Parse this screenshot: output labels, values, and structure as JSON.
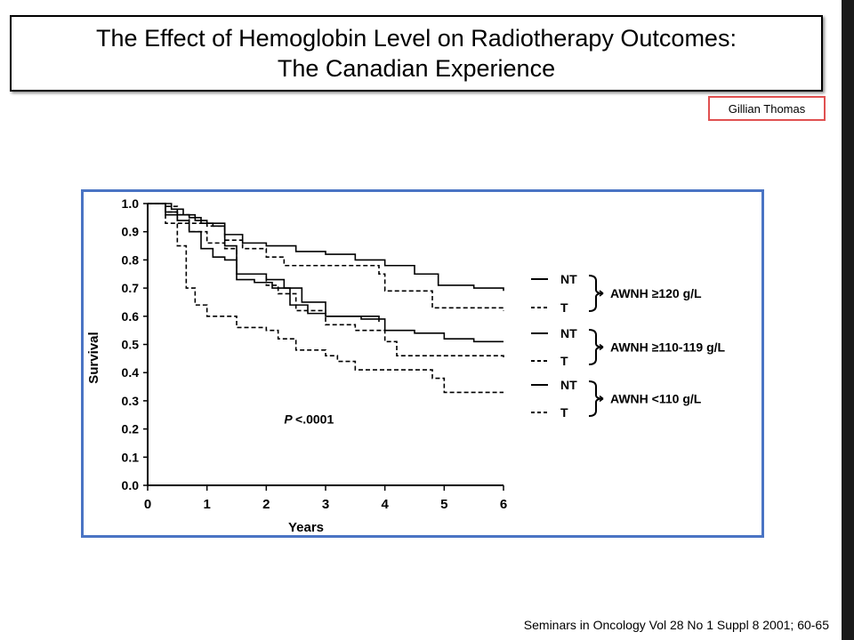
{
  "slide": {
    "title_line1": "The Effect of Hemoglobin Level on Radiotherapy Outcomes:",
    "title_line2": "The Canadian Experience",
    "author": "Gillian Thomas",
    "citation": "Seminars in Oncology Vol 28 No 1 Suppl 8 2001; 60-65"
  },
  "colors": {
    "frame_border": "#4a74c4",
    "author_border": "#e05050",
    "right_bar": "#1a1a1a"
  },
  "chart_data": {
    "type": "line",
    "title": "",
    "xlabel": "Years",
    "ylabel": "Survival",
    "xlim": [
      0,
      6
    ],
    "ylim": [
      0,
      1.0
    ],
    "x_ticks": [
      "0",
      "1",
      "2",
      "3",
      "4",
      "5",
      "6"
    ],
    "y_ticks": [
      "0.0",
      "0.1",
      "0.2",
      "0.3",
      "0.4",
      "0.5",
      "0.6",
      "0.7",
      "0.8",
      "0.9",
      "1.0"
    ],
    "annotation": "P <.0001",
    "legend_position": "right",
    "legend": [
      {
        "line": "NT",
        "style": "solid",
        "group_label": "AWNH ≥120 g/L"
      },
      {
        "line": "T",
        "style": "dashed",
        "group_label": ""
      },
      {
        "line": "NT",
        "style": "solid",
        "group_label": "AWNH ≥110-119 g/L"
      },
      {
        "line": "T",
        "style": "dashed",
        "group_label": ""
      },
      {
        "line": "NT",
        "style": "solid",
        "group_label": "AWNH <110 g/L"
      },
      {
        "line": "T",
        "style": "dashed",
        "group_label": ""
      }
    ],
    "series": [
      {
        "style": "solid",
        "x": [
          0,
          0.2,
          0.4,
          0.6,
          0.8,
          1.0,
          1.3,
          1.6,
          2.0,
          2.5,
          3.0,
          3.5,
          4.0,
          4.5,
          4.9,
          5.5,
          6.0
        ],
        "y": [
          1.0,
          1.0,
          0.98,
          0.96,
          0.94,
          0.93,
          0.89,
          0.86,
          0.85,
          0.83,
          0.82,
          0.8,
          0.78,
          0.75,
          0.71,
          0.7,
          0.69
        ]
      },
      {
        "style": "dashed",
        "x": [
          0,
          0.3,
          0.5,
          0.7,
          1.0,
          1.3,
          1.6,
          2.0,
          2.3,
          2.6,
          3.0,
          3.5,
          3.9,
          4.0,
          4.5,
          4.8,
          5.2,
          6.0
        ],
        "y": [
          1.0,
          0.99,
          0.96,
          0.93,
          0.92,
          0.87,
          0.84,
          0.81,
          0.78,
          0.78,
          0.78,
          0.78,
          0.75,
          0.69,
          0.69,
          0.63,
          0.63,
          0.62
        ]
      },
      {
        "style": "solid",
        "x": [
          0,
          0.3,
          0.5,
          0.7,
          0.9,
          1.1,
          1.3,
          1.5,
          2.0,
          2.3,
          2.6,
          3.0,
          3.6,
          4.0,
          4.5,
          5.0,
          5.5,
          6.0
        ],
        "y": [
          1.0,
          0.97,
          0.96,
          0.95,
          0.93,
          0.92,
          0.85,
          0.75,
          0.73,
          0.7,
          0.65,
          0.6,
          0.59,
          0.55,
          0.54,
          0.52,
          0.51,
          0.51
        ]
      },
      {
        "style": "dashed",
        "x": [
          0,
          0.3,
          0.5,
          0.7,
          1.0,
          1.3,
          1.5,
          2.0,
          2.2,
          2.5,
          3.0,
          3.5,
          4.0,
          4.2,
          4.8,
          5.5,
          6.0
        ],
        "y": [
          1.0,
          0.97,
          0.93,
          0.9,
          0.86,
          0.84,
          0.75,
          0.71,
          0.68,
          0.62,
          0.57,
          0.55,
          0.51,
          0.46,
          0.46,
          0.46,
          0.45
        ]
      },
      {
        "style": "solid",
        "x": [
          0,
          0.3,
          0.5,
          0.7,
          0.9,
          1.1,
          1.3,
          1.5,
          1.8,
          2.1,
          2.4,
          2.7,
          3.0,
          3.5,
          3.9
        ],
        "y": [
          1.0,
          0.96,
          0.94,
          0.9,
          0.84,
          0.81,
          0.8,
          0.73,
          0.72,
          0.7,
          0.64,
          0.61,
          0.6,
          0.6,
          0.58
        ]
      },
      {
        "style": "dashed",
        "x": [
          0,
          0.3,
          0.5,
          0.65,
          0.8,
          1.0,
          1.5,
          2.0,
          2.2,
          2.5,
          3.0,
          3.2,
          3.5,
          4.0,
          4.8,
          5.0,
          6.0
        ],
        "y": [
          1.0,
          0.93,
          0.85,
          0.7,
          0.64,
          0.6,
          0.56,
          0.55,
          0.52,
          0.48,
          0.46,
          0.44,
          0.41,
          0.41,
          0.38,
          0.33,
          0.33
        ]
      }
    ]
  }
}
